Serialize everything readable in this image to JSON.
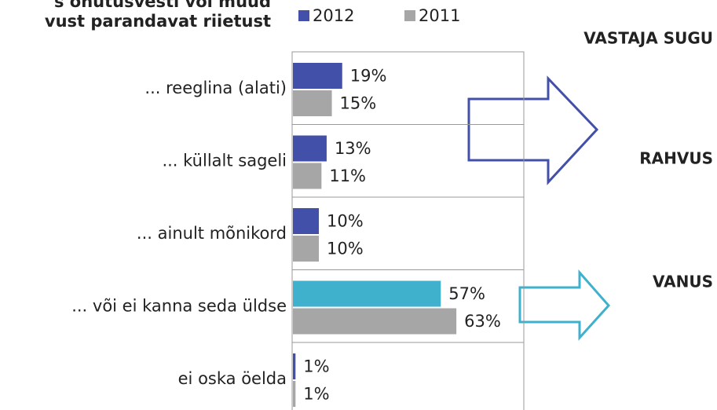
{
  "chart_data": {
    "type": "hbar",
    "title_lines": [
      "s ohutusvesti või muud",
      "vust parandavat riietust"
    ],
    "categories": [
      "... reeglina (alati)",
      "... küllalt sageli",
      "... ainult mõnikord",
      "... või ei kanna seda üldse",
      "ei oska öelda"
    ],
    "series": [
      {
        "name": "2012",
        "color": "#4350a9",
        "colors": [
          "#4350a9",
          "#4350a9",
          "#4350a9",
          "#3fb1cc",
          "#4350a9"
        ],
        "values": [
          19,
          13,
          10,
          57,
          1
        ],
        "value_labels": [
          "19%",
          "13%",
          "10%",
          "57%",
          "1%"
        ]
      },
      {
        "name": "2011",
        "color": "#a6a6a6",
        "values": [
          15,
          11,
          10,
          63,
          1
        ],
        "value_labels": [
          "15%",
          "11%",
          "10%",
          "63%",
          "1%"
        ]
      }
    ],
    "xlim": [
      0,
      89
    ],
    "annotations": [
      "VASTAJA SUGU",
      "RAHVUS",
      "VANUS"
    ]
  }
}
